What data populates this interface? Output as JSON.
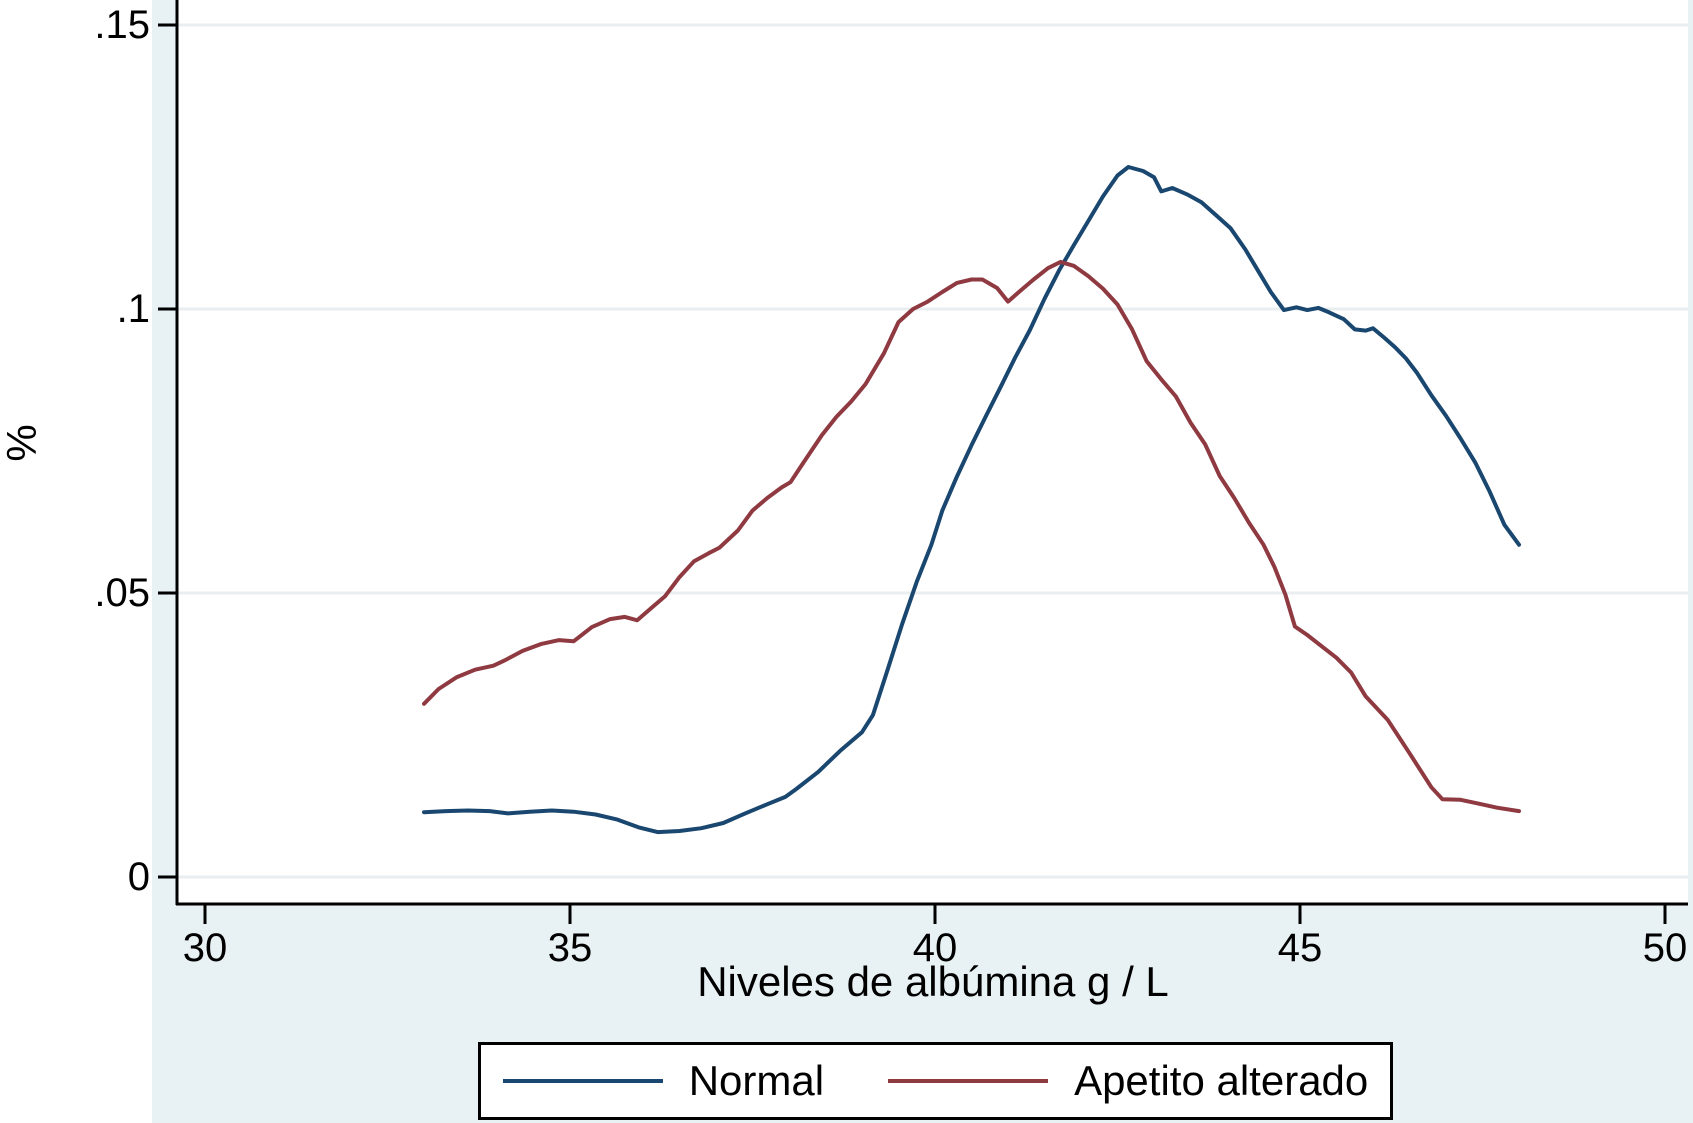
{
  "figure": {
    "background_color": "#e8f1f3",
    "plot_background": "#ffffff",
    "grid_color": "#e9eef1",
    "axis_color": "#000000",
    "text_color": "#000000"
  },
  "chart_data": {
    "type": "line",
    "title": "",
    "xlabel": "Niveles de albúmina g / L",
    "ylabel": "%",
    "xlim": [
      30,
      50
    ],
    "ylim": [
      0,
      0.15
    ],
    "grid": "horizontal",
    "legend_position": "bottom",
    "xticks": {
      "values": [
        30,
        35,
        40,
        45,
        50
      ],
      "labels": [
        "30",
        "35",
        "40",
        "45",
        "50"
      ]
    },
    "yticks": {
      "values": [
        0,
        0.05,
        0.1,
        0.15
      ],
      "labels": [
        "0",
        ".05",
        ".1",
        ".15"
      ]
    },
    "series": [
      {
        "name": "Normal",
        "color": "#1a476f",
        "points": [
          [
            33.0,
            0.0114
          ],
          [
            33.3,
            0.0116
          ],
          [
            33.6,
            0.0117
          ],
          [
            33.9,
            0.0116
          ],
          [
            34.15,
            0.0112
          ],
          [
            34.45,
            0.0115
          ],
          [
            34.75,
            0.0117
          ],
          [
            35.05,
            0.0115
          ],
          [
            35.35,
            0.011
          ],
          [
            35.65,
            0.0101
          ],
          [
            35.95,
            0.0087
          ],
          [
            36.2,
            0.0079
          ],
          [
            36.5,
            0.0081
          ],
          [
            36.8,
            0.0086
          ],
          [
            37.1,
            0.0095
          ],
          [
            37.4,
            0.0112
          ],
          [
            37.7,
            0.0128
          ],
          [
            37.95,
            0.0141
          ],
          [
            38.1,
            0.0155
          ],
          [
            38.4,
            0.0185
          ],
          [
            38.7,
            0.0222
          ],
          [
            39.0,
            0.0255
          ],
          [
            39.15,
            0.0285
          ],
          [
            39.35,
            0.0365
          ],
          [
            39.55,
            0.0445
          ],
          [
            39.75,
            0.052
          ],
          [
            39.95,
            0.0585
          ],
          [
            40.1,
            0.0645
          ],
          [
            40.3,
            0.0705
          ],
          [
            40.5,
            0.076
          ],
          [
            40.7,
            0.0812
          ],
          [
            40.9,
            0.0863
          ],
          [
            41.1,
            0.0915
          ],
          [
            41.3,
            0.0963
          ],
          [
            41.5,
            0.1018
          ],
          [
            41.7,
            0.1068
          ],
          [
            41.9,
            0.1112
          ],
          [
            42.1,
            0.1155
          ],
          [
            42.3,
            0.1198
          ],
          [
            42.5,
            0.1235
          ],
          [
            42.65,
            0.125
          ],
          [
            42.85,
            0.1243
          ],
          [
            43.0,
            0.1232
          ],
          [
            43.1,
            0.1207
          ],
          [
            43.25,
            0.1213
          ],
          [
            43.45,
            0.1202
          ],
          [
            43.65,
            0.1188
          ],
          [
            43.85,
            0.1165
          ],
          [
            44.05,
            0.1142
          ],
          [
            44.25,
            0.1105
          ],
          [
            44.45,
            0.1062
          ],
          [
            44.6,
            0.103
          ],
          [
            44.78,
            0.0998
          ],
          [
            44.95,
            0.1003
          ],
          [
            45.1,
            0.0998
          ],
          [
            45.25,
            0.1002
          ],
          [
            45.4,
            0.0994
          ],
          [
            45.6,
            0.0982
          ],
          [
            45.75,
            0.0964
          ],
          [
            45.9,
            0.0962
          ],
          [
            46.0,
            0.0966
          ],
          [
            46.15,
            0.095
          ],
          [
            46.3,
            0.0933
          ],
          [
            46.45,
            0.0913
          ],
          [
            46.6,
            0.0888
          ],
          [
            46.8,
            0.0848
          ],
          [
            47.0,
            0.0812
          ],
          [
            47.2,
            0.0772
          ],
          [
            47.4,
            0.073
          ],
          [
            47.6,
            0.0678
          ],
          [
            47.8,
            0.062
          ],
          [
            48.0,
            0.0585
          ]
        ]
      },
      {
        "name": "Apetito alterado",
        "color": "#8f3941",
        "points": [
          [
            33.0,
            0.0305
          ],
          [
            33.2,
            0.0331
          ],
          [
            33.45,
            0.0352
          ],
          [
            33.7,
            0.0365
          ],
          [
            33.95,
            0.0372
          ],
          [
            34.1,
            0.0381
          ],
          [
            34.35,
            0.0398
          ],
          [
            34.6,
            0.041
          ],
          [
            34.85,
            0.0417
          ],
          [
            35.05,
            0.0415
          ],
          [
            35.3,
            0.044
          ],
          [
            35.55,
            0.0454
          ],
          [
            35.75,
            0.0458
          ],
          [
            35.92,
            0.0452
          ],
          [
            36.1,
            0.0472
          ],
          [
            36.3,
            0.0494
          ],
          [
            36.5,
            0.0528
          ],
          [
            36.7,
            0.0556
          ],
          [
            36.9,
            0.057
          ],
          [
            37.05,
            0.058
          ],
          [
            37.3,
            0.061
          ],
          [
            37.5,
            0.0645
          ],
          [
            37.7,
            0.0667
          ],
          [
            37.9,
            0.0686
          ],
          [
            38.02,
            0.0695
          ],
          [
            38.2,
            0.073
          ],
          [
            38.45,
            0.0778
          ],
          [
            38.65,
            0.081
          ],
          [
            38.85,
            0.0837
          ],
          [
            39.05,
            0.0868
          ],
          [
            39.3,
            0.0922
          ],
          [
            39.5,
            0.0977
          ],
          [
            39.7,
            0.1
          ],
          [
            39.9,
            0.1013
          ],
          [
            40.1,
            0.103
          ],
          [
            40.3,
            0.1046
          ],
          [
            40.5,
            0.1052
          ],
          [
            40.65,
            0.1052
          ],
          [
            40.85,
            0.1037
          ],
          [
            41.0,
            0.1013
          ],
          [
            41.15,
            0.103
          ],
          [
            41.35,
            0.1052
          ],
          [
            41.55,
            0.1072
          ],
          [
            41.72,
            0.1083
          ],
          [
            41.9,
            0.1076
          ],
          [
            42.1,
            0.1058
          ],
          [
            42.3,
            0.1036
          ],
          [
            42.5,
            0.1008
          ],
          [
            42.7,
            0.0964
          ],
          [
            42.9,
            0.0908
          ],
          [
            43.1,
            0.0876
          ],
          [
            43.3,
            0.0846
          ],
          [
            43.5,
            0.08
          ],
          [
            43.7,
            0.0762
          ],
          [
            43.9,
            0.0706
          ],
          [
            44.1,
            0.0667
          ],
          [
            44.3,
            0.0624
          ],
          [
            44.5,
            0.0585
          ],
          [
            44.65,
            0.0546
          ],
          [
            44.8,
            0.0497
          ],
          [
            44.93,
            0.0441
          ],
          [
            45.1,
            0.0426
          ],
          [
            45.3,
            0.0406
          ],
          [
            45.5,
            0.0386
          ],
          [
            45.7,
            0.036
          ],
          [
            45.9,
            0.0318
          ],
          [
            46.2,
            0.0277
          ],
          [
            46.5,
            0.0218
          ],
          [
            46.8,
            0.0158
          ],
          [
            46.95,
            0.0137
          ],
          [
            47.2,
            0.0136
          ],
          [
            47.45,
            0.0129
          ],
          [
            47.7,
            0.0122
          ],
          [
            48.0,
            0.0116
          ]
        ]
      }
    ]
  }
}
